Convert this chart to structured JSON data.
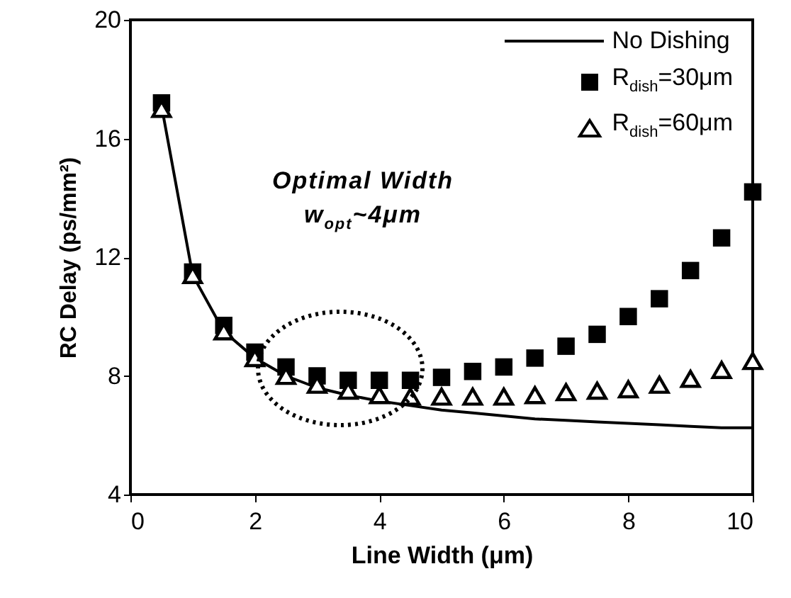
{
  "chart_data": {
    "type": "line",
    "xlabel": "Line Width (μm)",
    "ylabel": "RC Delay (ps/mm²)",
    "x": [
      0.5,
      1,
      1.5,
      2,
      2.5,
      3,
      3.5,
      4,
      4.5,
      5,
      5.5,
      6,
      6.5,
      7,
      7.5,
      8,
      8.5,
      9,
      9.5,
      10
    ],
    "xlim": [
      0,
      10
    ],
    "xticks": [
      0,
      2,
      4,
      6,
      8,
      10
    ],
    "ylim": [
      4,
      20
    ],
    "yticks": [
      4,
      8,
      12,
      16,
      20
    ],
    "grid": false,
    "legend": "top right",
    "series": [
      {
        "name": "No Dishing",
        "marker": "none",
        "line_style": "solid",
        "color": "#000000",
        "values": [
          17.1,
          11.4,
          9.5,
          8.6,
          8.0,
          7.6,
          7.35,
          7.15,
          7.0,
          6.85,
          6.75,
          6.65,
          6.55,
          6.5,
          6.45,
          6.4,
          6.35,
          6.3,
          6.25,
          6.25
        ]
      },
      {
        "name": "R$_{dish}$=30μm",
        "type": "scatter",
        "marker": "square",
        "color": "#000000",
        "values": [
          17.2,
          11.5,
          9.7,
          8.8,
          8.3,
          8.0,
          7.85,
          7.85,
          7.85,
          7.95,
          8.15,
          8.3,
          8.6,
          9.0,
          9.4,
          10.0,
          10.6,
          11.55,
          12.65,
          14.2
        ]
      },
      {
        "name": "R$_{dish}$=60μm",
        "type": "scatter",
        "marker": "triangle",
        "color": "#000000",
        "values": [
          17.0,
          11.4,
          9.5,
          8.6,
          8.0,
          7.7,
          7.5,
          7.35,
          7.3,
          7.3,
          7.3,
          7.3,
          7.35,
          7.45,
          7.5,
          7.55,
          7.7,
          7.9,
          8.2,
          8.5
        ]
      }
    ],
    "annotations": [
      "Optimal Width",
      "w$_{opt}$~4μm"
    ]
  }
}
